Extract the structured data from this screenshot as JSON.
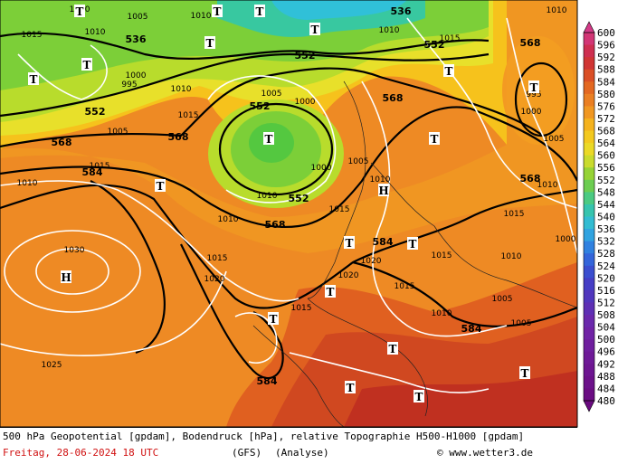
{
  "colorbar": {
    "ticks": [
      "600",
      "596",
      "592",
      "588",
      "584",
      "580",
      "576",
      "572",
      "568",
      "564",
      "560",
      "556",
      "552",
      "548",
      "544",
      "540",
      "536",
      "532",
      "528",
      "524",
      "520",
      "516",
      "512",
      "508",
      "504",
      "500",
      "496",
      "492",
      "488",
      "484",
      "480"
    ]
  },
  "heights": [
    "536",
    "536",
    "552",
    "552",
    "552",
    "552",
    "552",
    "568",
    "568",
    "568",
    "568",
    "584",
    "568",
    "568",
    "584",
    "584",
    "584"
  ],
  "isobars": [
    "1010",
    "1005",
    "1010",
    "1015",
    "1010",
    "1000",
    "995",
    "1010",
    "1015",
    "1005",
    "1000",
    "1005",
    "1015",
    "1010",
    "1000",
    "1005",
    "1010",
    "1015",
    "1010",
    "1015",
    "1020",
    "1010",
    "1030",
    "1020",
    "1025",
    "1015",
    "1020",
    "1015",
    "1015",
    "1010",
    "1005",
    "1005",
    "1010",
    "1015",
    "1010",
    "1010",
    "1015",
    "1000",
    "995",
    "1005",
    "1010",
    "1000"
  ],
  "centers": [
    "T",
    "T",
    "T",
    "T",
    "T",
    "T",
    "T",
    "T",
    "H",
    "H",
    "T",
    "T",
    "T",
    "T",
    "T",
    "T",
    "T",
    "T",
    "T",
    "T",
    "T",
    "T"
  ],
  "footer": {
    "line1": "500 hPa Geopotential [gpdam], Bodendruck [hPa], relative Topographie H500-H1000 [gpdam]",
    "date": "Freitag, 28-06-2024  18 UTC",
    "model": "(GFS)",
    "run": "(Analyse)",
    "credit": "© www.wetter3.de"
  }
}
